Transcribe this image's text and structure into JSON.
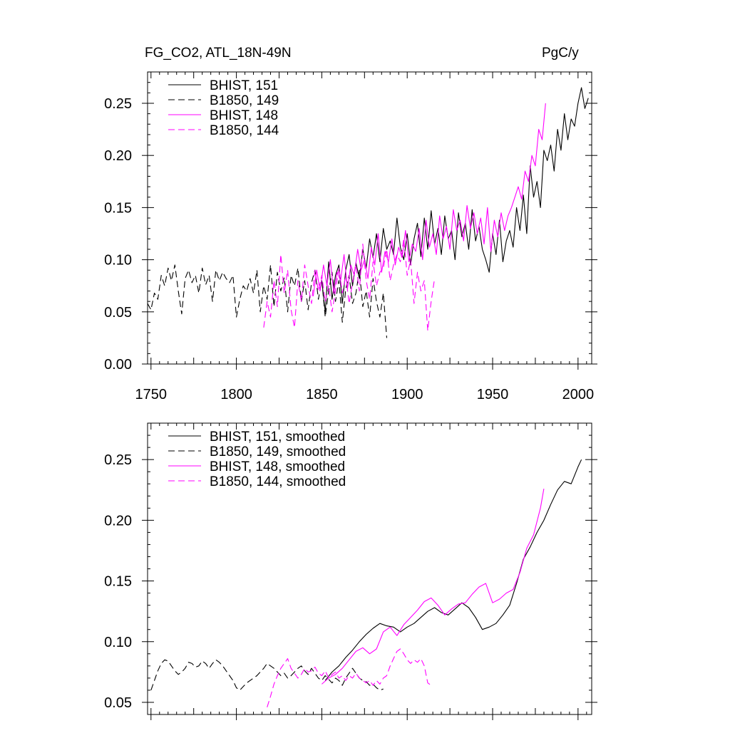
{
  "header": {
    "left_title": "FG_CO2, ATL_18N-49N",
    "right_units": "PgC/y"
  },
  "chart_data": [
    {
      "type": "line",
      "xlim": [
        1748,
        2008
      ],
      "ylim": [
        0.0,
        0.28
      ],
      "xticks": [
        "1750",
        "1800",
        "1850",
        "1900",
        "1950",
        "2000"
      ],
      "yticks": [
        "0.00",
        "0.05",
        "0.10",
        "0.15",
        "0.20",
        "0.25"
      ],
      "legend_position": "top-left",
      "series": [
        {
          "name": "BHIST, 151",
          "color": "#000000",
          "dash": "solid",
          "x": [
            1850,
            1852,
            1854,
            1856,
            1858,
            1860,
            1862,
            1864,
            1866,
            1868,
            1870,
            1872,
            1874,
            1876,
            1878,
            1880,
            1882,
            1884,
            1886,
            1888,
            1890,
            1892,
            1894,
            1896,
            1898,
            1900,
            1902,
            1904,
            1906,
            1908,
            1910,
            1912,
            1914,
            1916,
            1918,
            1920,
            1922,
            1924,
            1926,
            1928,
            1930,
            1932,
            1934,
            1936,
            1938,
            1940,
            1942,
            1944,
            1946,
            1948,
            1950,
            1952,
            1954,
            1956,
            1958,
            1960,
            1962,
            1964,
            1966,
            1968,
            1970,
            1972,
            1974,
            1976,
            1978,
            1980,
            1982,
            1984,
            1986,
            1988,
            1990,
            1992,
            1994,
            1996,
            1998,
            2000,
            2002,
            2004,
            2006
          ],
          "y": [
            0.08,
            0.05,
            0.098,
            0.062,
            0.085,
            0.095,
            0.058,
            0.09,
            0.105,
            0.075,
            0.097,
            0.082,
            0.11,
            0.092,
            0.12,
            0.102,
            0.125,
            0.098,
            0.13,
            0.11,
            0.118,
            0.105,
            0.14,
            0.112,
            0.1,
            0.125,
            0.095,
            0.12,
            0.135,
            0.103,
            0.14,
            0.11,
            0.147,
            0.115,
            0.13,
            0.105,
            0.142,
            0.12,
            0.128,
            0.1,
            0.145,
            0.122,
            0.135,
            0.11,
            0.148,
            0.118,
            0.132,
            0.11,
            0.1,
            0.088,
            0.125,
            0.105,
            0.138,
            0.098,
            0.118,
            0.128,
            0.112,
            0.15,
            0.128,
            0.162,
            0.125,
            0.19,
            0.16,
            0.175,
            0.15,
            0.205,
            0.195,
            0.21,
            0.185,
            0.225,
            0.205,
            0.24,
            0.215,
            0.235,
            0.228,
            0.25,
            0.265,
            0.245,
            0.255
          ]
        },
        {
          "name": "B1850, 149",
          "color": "#000000",
          "dash": "dashed",
          "x": [
            1748,
            1750,
            1752,
            1754,
            1756,
            1758,
            1760,
            1762,
            1764,
            1766,
            1768,
            1770,
            1772,
            1774,
            1776,
            1778,
            1780,
            1782,
            1784,
            1786,
            1788,
            1790,
            1792,
            1794,
            1796,
            1798,
            1800,
            1802,
            1804,
            1806,
            1808,
            1810,
            1812,
            1814,
            1816,
            1818,
            1820,
            1822,
            1824,
            1826,
            1828,
            1830,
            1832,
            1834,
            1836,
            1838,
            1840,
            1842,
            1844,
            1846,
            1848,
            1850,
            1852,
            1854,
            1856,
            1858,
            1860,
            1862,
            1864,
            1866,
            1868,
            1870,
            1872,
            1874,
            1876,
            1878,
            1880,
            1882,
            1884,
            1886,
            1888
          ],
          "y": [
            0.058,
            0.052,
            0.068,
            0.062,
            0.085,
            0.075,
            0.092,
            0.08,
            0.095,
            0.07,
            0.048,
            0.082,
            0.09,
            0.078,
            0.085,
            0.068,
            0.092,
            0.076,
            0.085,
            0.06,
            0.09,
            0.08,
            0.088,
            0.082,
            0.078,
            0.085,
            0.045,
            0.062,
            0.075,
            0.07,
            0.082,
            0.068,
            0.09,
            0.05,
            0.075,
            0.062,
            0.095,
            0.055,
            0.088,
            0.07,
            0.083,
            0.05,
            0.085,
            0.075,
            0.092,
            0.06,
            0.08,
            0.052,
            0.078,
            0.09,
            0.062,
            0.08,
            0.045,
            0.07,
            0.088,
            0.06,
            0.08,
            0.04,
            0.072,
            0.085,
            0.058,
            0.068,
            0.09,
            0.055,
            0.07,
            0.045,
            0.082,
            0.06,
            0.045,
            0.068,
            0.025
          ]
        },
        {
          "name": "BHIST, 148",
          "color": "#ff00ff",
          "dash": "solid",
          "x": [
            1845,
            1847,
            1849,
            1851,
            1853,
            1855,
            1857,
            1859,
            1861,
            1863,
            1865,
            1867,
            1869,
            1871,
            1873,
            1875,
            1877,
            1879,
            1881,
            1883,
            1885,
            1887,
            1889,
            1891,
            1893,
            1895,
            1897,
            1899,
            1901,
            1903,
            1905,
            1907,
            1909,
            1911,
            1913,
            1915,
            1917,
            1919,
            1921,
            1923,
            1925,
            1927,
            1929,
            1931,
            1933,
            1935,
            1937,
            1939,
            1941,
            1943,
            1945,
            1947,
            1949,
            1951,
            1953,
            1955,
            1957,
            1959,
            1961,
            1963,
            1965,
            1967,
            1969,
            1971,
            1973,
            1975,
            1977,
            1979,
            1981
          ],
          "y": [
            0.065,
            0.09,
            0.07,
            0.095,
            0.075,
            0.1,
            0.068,
            0.088,
            0.08,
            0.105,
            0.072,
            0.095,
            0.085,
            0.11,
            0.09,
            0.1,
            0.082,
            0.112,
            0.095,
            0.125,
            0.088,
            0.108,
            0.098,
            0.12,
            0.095,
            0.112,
            0.102,
            0.128,
            0.098,
            0.115,
            0.108,
            0.13,
            0.1,
            0.138,
            0.112,
            0.125,
            0.105,
            0.142,
            0.12,
            0.132,
            0.11,
            0.148,
            0.128,
            0.138,
            0.118,
            0.152,
            0.13,
            0.145,
            0.125,
            0.14,
            0.115,
            0.15,
            0.108,
            0.138,
            0.122,
            0.145,
            0.128,
            0.142,
            0.15,
            0.16,
            0.17,
            0.158,
            0.185,
            0.175,
            0.2,
            0.19,
            0.225,
            0.215,
            0.25
          ]
        },
        {
          "name": "B1850, 144",
          "color": "#ff00ff",
          "dash": "dashed",
          "x": [
            1816,
            1818,
            1820,
            1822,
            1824,
            1826,
            1828,
            1830,
            1832,
            1834,
            1836,
            1838,
            1840,
            1842,
            1844,
            1846,
            1848,
            1850,
            1852,
            1854,
            1856,
            1858,
            1860,
            1862,
            1864,
            1866,
            1868,
            1870,
            1872,
            1874,
            1876,
            1878,
            1880,
            1882,
            1884,
            1886,
            1888,
            1890,
            1892,
            1894,
            1896,
            1898,
            1900,
            1902,
            1904,
            1906,
            1908,
            1910,
            1912,
            1914,
            1916
          ],
          "y": [
            0.035,
            0.06,
            0.045,
            0.08,
            0.055,
            0.105,
            0.068,
            0.09,
            0.052,
            0.035,
            0.08,
            0.06,
            0.095,
            0.075,
            0.058,
            0.09,
            0.07,
            0.085,
            0.06,
            0.075,
            0.05,
            0.07,
            0.092,
            0.068,
            0.085,
            0.058,
            0.078,
            0.095,
            0.07,
            0.115,
            0.08,
            0.062,
            0.098,
            0.075,
            0.088,
            0.092,
            0.11,
            0.08,
            0.095,
            0.105,
            0.098,
            0.12,
            0.085,
            0.1,
            0.058,
            0.088,
            0.07,
            0.08,
            0.032,
            0.06,
            0.082
          ]
        }
      ]
    },
    {
      "type": "line",
      "xlim": [
        1748,
        2008
      ],
      "ylim": [
        0.04,
        0.28
      ],
      "yticks": [
        "0.05",
        "0.10",
        "0.15",
        "0.20",
        "0.25"
      ],
      "legend_position": "top-left",
      "series": [
        {
          "name": "BHIST, 151, smoothed",
          "color": "#000000",
          "dash": "solid",
          "x": [
            1852,
            1856,
            1860,
            1864,
            1868,
            1872,
            1876,
            1880,
            1884,
            1888,
            1892,
            1896,
            1900,
            1904,
            1908,
            1912,
            1916,
            1920,
            1924,
            1928,
            1932,
            1936,
            1940,
            1944,
            1948,
            1952,
            1956,
            1960,
            1964,
            1968,
            1972,
            1976,
            1980,
            1984,
            1988,
            1992,
            1996,
            2000,
            2002
          ],
          "y": [
            0.068,
            0.075,
            0.08,
            0.087,
            0.093,
            0.1,
            0.106,
            0.111,
            0.115,
            0.113,
            0.112,
            0.108,
            0.112,
            0.115,
            0.12,
            0.125,
            0.128,
            0.124,
            0.122,
            0.127,
            0.132,
            0.128,
            0.12,
            0.11,
            0.112,
            0.115,
            0.122,
            0.13,
            0.148,
            0.168,
            0.178,
            0.19,
            0.2,
            0.213,
            0.225,
            0.232,
            0.23,
            0.244,
            0.25
          ]
        },
        {
          "name": "B1850, 149, smoothed",
          "color": "#000000",
          "dash": "dashed",
          "x": [
            1750,
            1752,
            1754,
            1756,
            1758,
            1760,
            1762,
            1764,
            1766,
            1768,
            1770,
            1772,
            1774,
            1776,
            1778,
            1780,
            1782,
            1784,
            1786,
            1788,
            1790,
            1792,
            1794,
            1796,
            1798,
            1800,
            1802,
            1804,
            1806,
            1808,
            1810,
            1812,
            1814,
            1816,
            1818,
            1820,
            1822,
            1824,
            1826,
            1828,
            1830,
            1832,
            1834,
            1836,
            1838,
            1840,
            1842,
            1844,
            1846,
            1848,
            1850,
            1852,
            1854,
            1856,
            1858,
            1860,
            1862,
            1864,
            1866,
            1868,
            1870,
            1872,
            1874,
            1876,
            1878,
            1880,
            1882,
            1884,
            1886
          ],
          "y": [
            0.06,
            0.068,
            0.076,
            0.082,
            0.085,
            0.084,
            0.08,
            0.076,
            0.073,
            0.075,
            0.078,
            0.083,
            0.082,
            0.079,
            0.08,
            0.084,
            0.082,
            0.078,
            0.082,
            0.085,
            0.083,
            0.08,
            0.076,
            0.072,
            0.068,
            0.062,
            0.06,
            0.063,
            0.066,
            0.068,
            0.07,
            0.072,
            0.075,
            0.078,
            0.082,
            0.08,
            0.078,
            0.075,
            0.072,
            0.074,
            0.07,
            0.072,
            0.075,
            0.078,
            0.08,
            0.076,
            0.073,
            0.078,
            0.074,
            0.07,
            0.068,
            0.072,
            0.069,
            0.066,
            0.07,
            0.068,
            0.064,
            0.07,
            0.074,
            0.078,
            0.074,
            0.07,
            0.068,
            0.067,
            0.064,
            0.065,
            0.062,
            0.06,
            0.061
          ]
        },
        {
          "name": "BHIST, 148, smoothed",
          "color": "#ff00ff",
          "dash": "solid",
          "x": [
            1850,
            1854,
            1858,
            1862,
            1866,
            1870,
            1874,
            1878,
            1882,
            1886,
            1890,
            1894,
            1898,
            1902,
            1906,
            1910,
            1914,
            1918,
            1922,
            1926,
            1930,
            1934,
            1938,
            1942,
            1946,
            1950,
            1954,
            1958,
            1962,
            1966,
            1970,
            1974,
            1978,
            1980
          ],
          "y": [
            0.065,
            0.07,
            0.073,
            0.078,
            0.085,
            0.092,
            0.095,
            0.09,
            0.094,
            0.108,
            0.112,
            0.105,
            0.114,
            0.12,
            0.126,
            0.133,
            0.136,
            0.13,
            0.122,
            0.127,
            0.131,
            0.132,
            0.139,
            0.145,
            0.148,
            0.132,
            0.135,
            0.14,
            0.143,
            0.157,
            0.177,
            0.188,
            0.21,
            0.226
          ]
        },
        {
          "name": "B1850, 144, smoothed",
          "color": "#ff00ff",
          "dash": "dashed",
          "x": [
            1818,
            1820,
            1822,
            1824,
            1826,
            1828,
            1830,
            1832,
            1834,
            1836,
            1838,
            1840,
            1842,
            1844,
            1846,
            1848,
            1850,
            1852,
            1854,
            1856,
            1858,
            1860,
            1862,
            1864,
            1866,
            1868,
            1870,
            1872,
            1874,
            1876,
            1878,
            1880,
            1882,
            1884,
            1886,
            1888,
            1890,
            1892,
            1894,
            1896,
            1898,
            1900,
            1902,
            1904,
            1906,
            1908,
            1910,
            1912,
            1914
          ],
          "y": [
            0.046,
            0.055,
            0.065,
            0.072,
            0.078,
            0.082,
            0.086,
            0.078,
            0.074,
            0.07,
            0.073,
            0.078,
            0.075,
            0.076,
            0.079,
            0.074,
            0.072,
            0.076,
            0.07,
            0.073,
            0.075,
            0.07,
            0.072,
            0.068,
            0.072,
            0.07,
            0.074,
            0.07,
            0.068,
            0.066,
            0.068,
            0.064,
            0.068,
            0.065,
            0.07,
            0.072,
            0.08,
            0.086,
            0.092,
            0.094,
            0.09,
            0.085,
            0.082,
            0.085,
            0.083,
            0.086,
            0.08,
            0.066,
            0.064
          ]
        }
      ]
    }
  ]
}
